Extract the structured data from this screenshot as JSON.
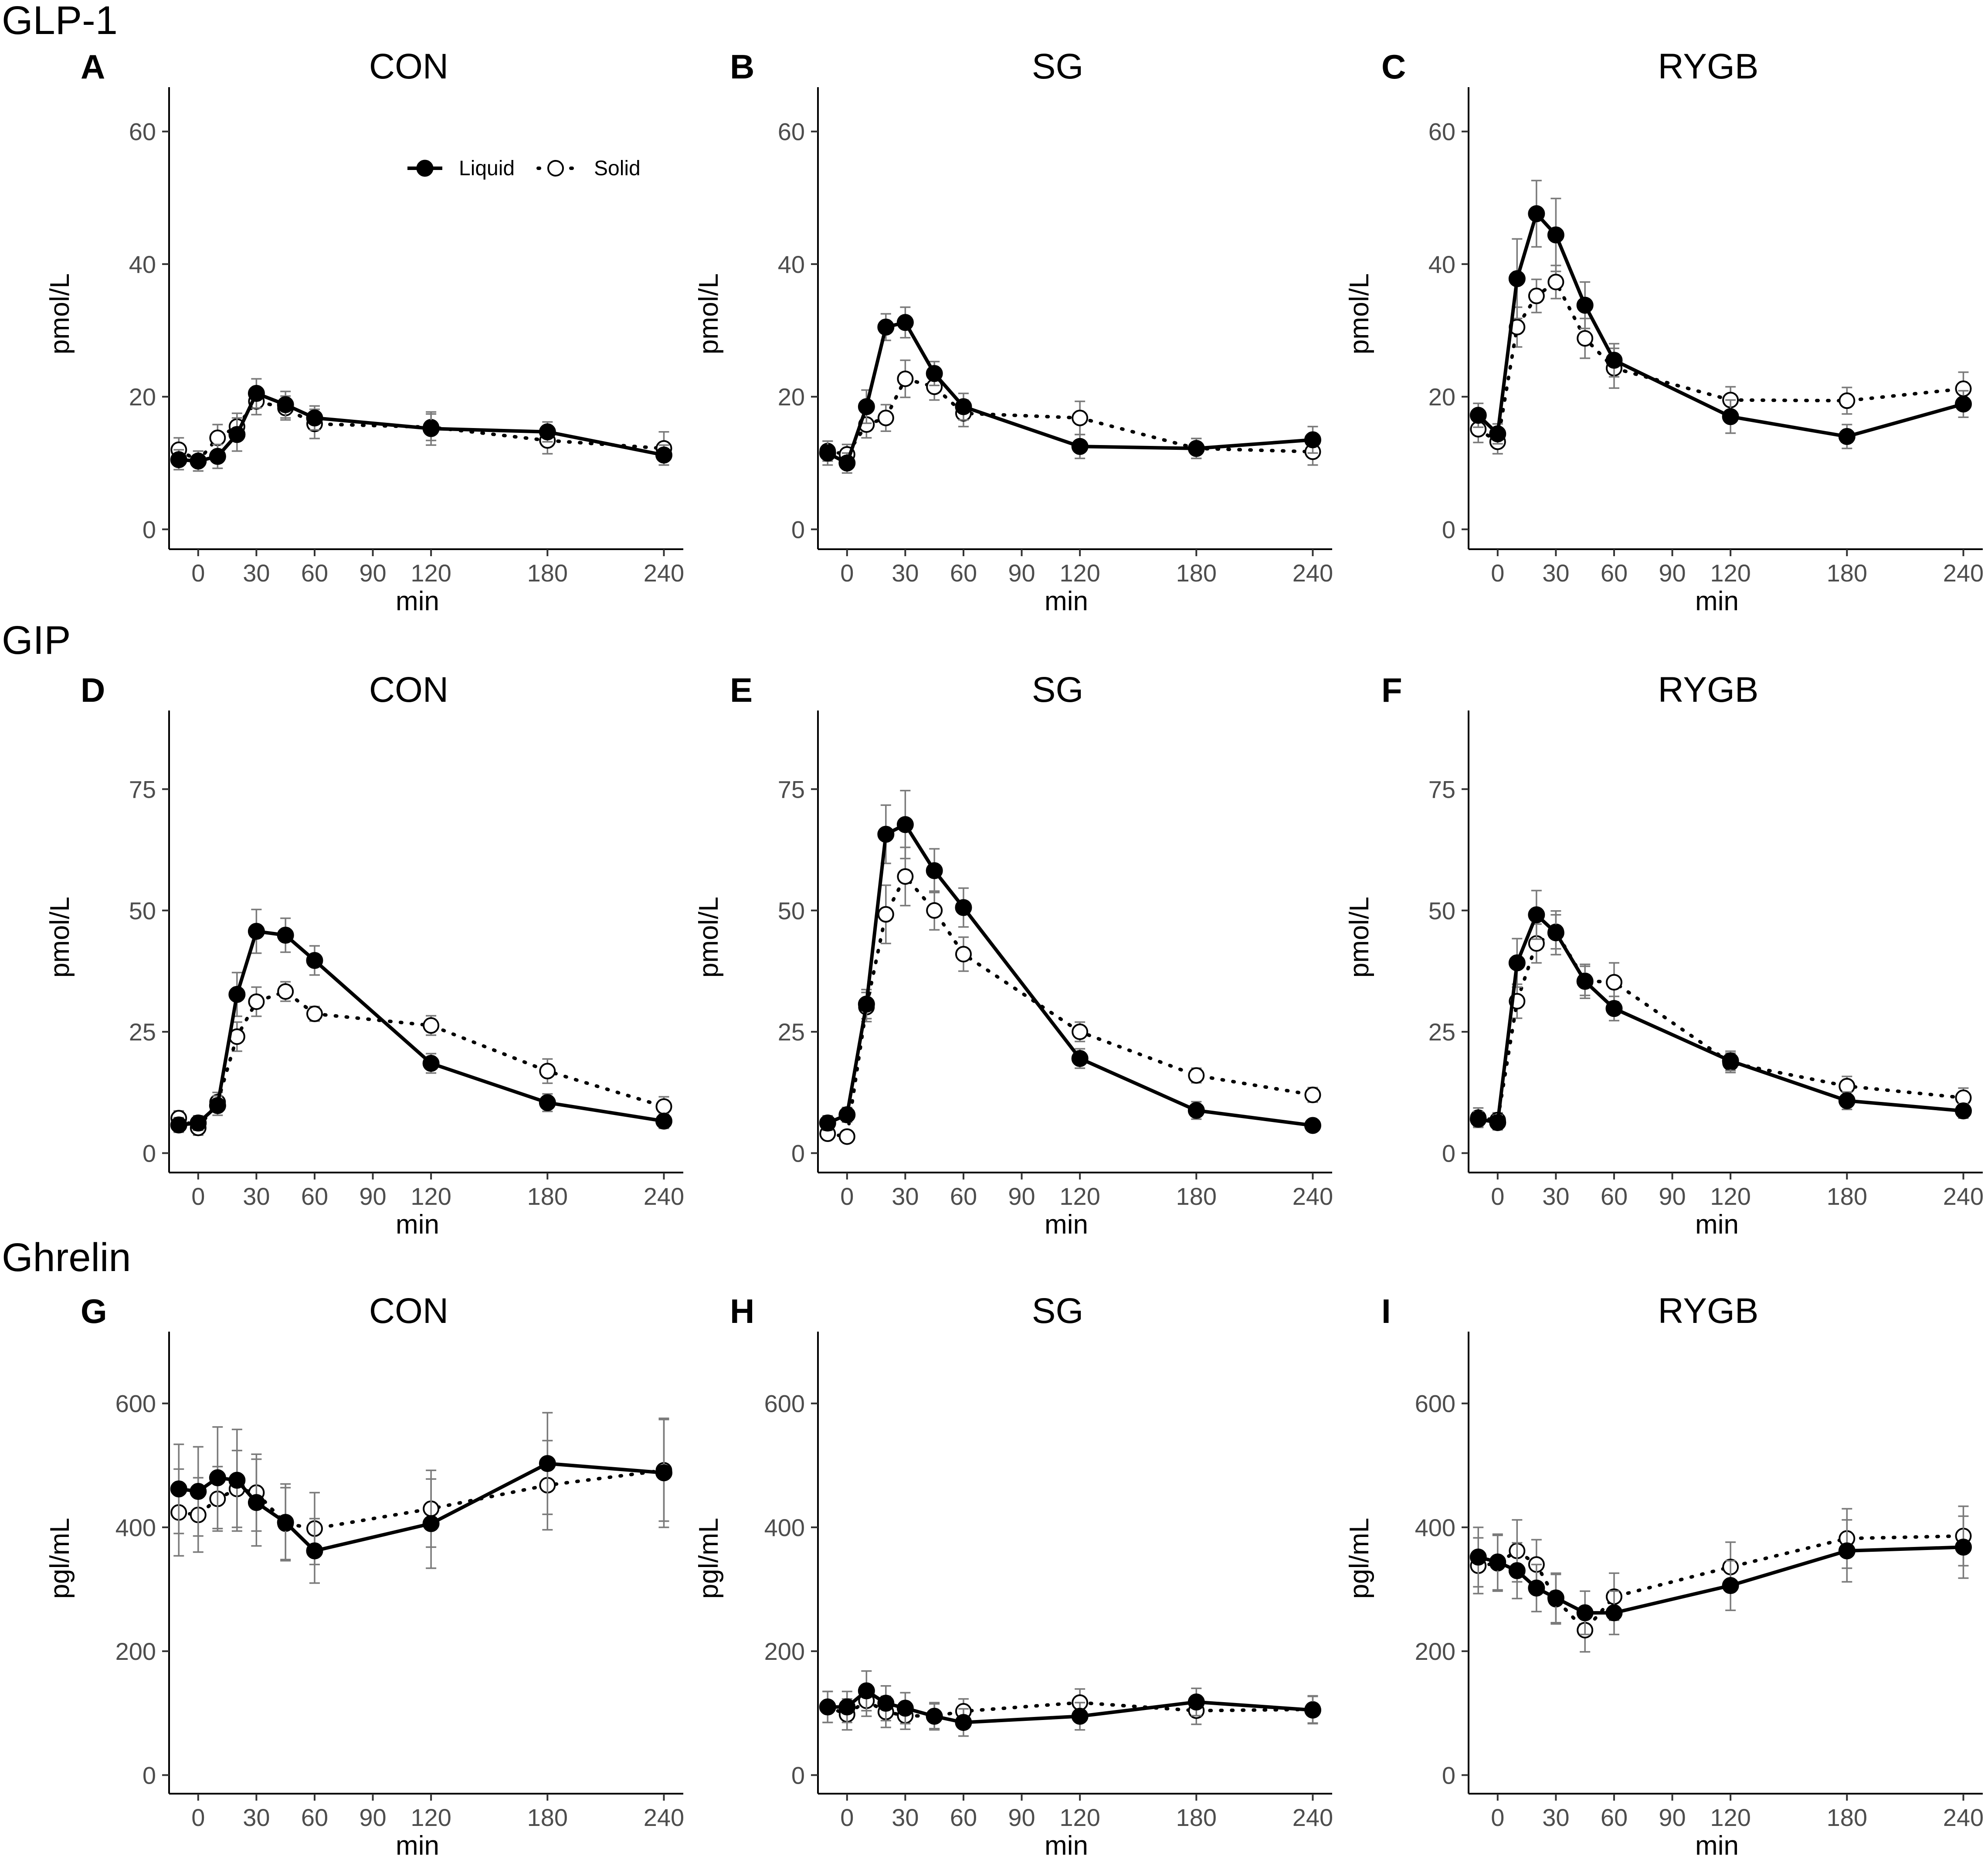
{
  "figure": {
    "row_titles": [
      "GLP-1",
      "GIP",
      "Ghrelin"
    ],
    "legend": {
      "liquid_label": "Liquid",
      "solid_label": "Solid"
    }
  },
  "chart_data": [
    {
      "type": "line",
      "letter": "A",
      "title": "CON",
      "row": "GLP-1",
      "xlabel": "min",
      "ylabel": "pmol/L",
      "xticks": [
        0,
        30,
        60,
        90,
        120,
        180,
        240
      ],
      "xlim": [
        -15,
        250
      ],
      "yticks": [
        0,
        20,
        40,
        60
      ],
      "ylim": [
        -3,
        68
      ],
      "series": [
        {
          "name": "Liquid",
          "x": [
            -10,
            0,
            10,
            20,
            30,
            45,
            60,
            120,
            180,
            240
          ],
          "y": [
            10.5,
            10.3,
            11.0,
            14.3,
            20.5,
            18.8,
            16.8,
            15.2,
            14.7,
            11.2
          ],
          "err": [
            1.5,
            1.5,
            1.8,
            2.5,
            2.2,
            2.0,
            1.8,
            2.5,
            1.5,
            1.5
          ]
        },
        {
          "name": "Solid",
          "x": [
            -10,
            0,
            10,
            20,
            30,
            45,
            60,
            120,
            180,
            240
          ],
          "y": [
            12.0,
            10.3,
            13.8,
            15.5,
            19.3,
            18.3,
            15.9,
            15.4,
            13.4,
            12.2
          ],
          "err": [
            1.8,
            1.5,
            2.0,
            2.0,
            2.0,
            1.8,
            2.2,
            2.0,
            2.0,
            2.5
          ]
        }
      ]
    },
    {
      "type": "line",
      "letter": "B",
      "title": "SG",
      "row": "GLP-1",
      "xlabel": "min",
      "ylabel": "pmol/L",
      "xticks": [
        0,
        30,
        60,
        90,
        120,
        180,
        240
      ],
      "xlim": [
        -15,
        250
      ],
      "yticks": [
        0,
        20,
        40,
        60
      ],
      "ylim": [
        -3,
        68
      ],
      "series": [
        {
          "name": "Liquid",
          "x": [
            -10,
            0,
            10,
            20,
            30,
            45,
            60,
            120,
            180,
            240
          ],
          "y": [
            11.5,
            10.0,
            18.5,
            30.5,
            31.2,
            23.5,
            18.5,
            12.5,
            12.2,
            13.5
          ],
          "err": [
            1.8,
            1.5,
            2.5,
            2.0,
            2.3,
            1.8,
            2.0,
            1.8,
            1.5,
            2.0
          ]
        },
        {
          "name": "Solid",
          "x": [
            -10,
            0,
            10,
            20,
            30,
            45,
            60,
            120,
            180,
            240
          ],
          "y": [
            11.8,
            11.3,
            15.8,
            16.8,
            22.7,
            21.5,
            17.5,
            16.8,
            12.2,
            11.7
          ],
          "err": [
            1.5,
            1.5,
            2.0,
            2.0,
            2.8,
            2.0,
            2.0,
            2.5,
            1.5,
            2.0
          ]
        }
      ]
    },
    {
      "type": "line",
      "letter": "C",
      "title": "RYGB",
      "row": "GLP-1",
      "xlabel": "min",
      "ylabel": "pmol/L",
      "xticks": [
        0,
        30,
        60,
        90,
        120,
        180,
        240
      ],
      "xlim": [
        -15,
        250
      ],
      "yticks": [
        0,
        20,
        40,
        60
      ],
      "ylim": [
        -3,
        68
      ],
      "series": [
        {
          "name": "Liquid",
          "x": [
            -10,
            0,
            10,
            20,
            30,
            45,
            60,
            120,
            180,
            240
          ],
          "y": [
            17.2,
            14.4,
            37.8,
            47.6,
            44.4,
            33.8,
            25.5,
            17.0,
            14.0,
            18.9
          ],
          "err": [
            1.8,
            1.5,
            6.0,
            5.0,
            5.5,
            3.5,
            2.5,
            2.5,
            1.8,
            2.0
          ]
        },
        {
          "name": "Solid",
          "x": [
            -10,
            0,
            10,
            20,
            30,
            45,
            60,
            120,
            180,
            240
          ],
          "y": [
            15.1,
            13.2,
            30.5,
            35.2,
            37.3,
            28.8,
            24.3,
            19.5,
            19.4,
            21.2
          ],
          "err": [
            2.0,
            1.8,
            3.0,
            2.5,
            2.5,
            3.0,
            3.0,
            2.0,
            2.0,
            2.5
          ]
        }
      ]
    },
    {
      "type": "line",
      "letter": "D",
      "title": "CON",
      "row": "GIP",
      "xlabel": "min",
      "ylabel": "pmol/L",
      "xticks": [
        0,
        30,
        60,
        90,
        120,
        180,
        240
      ],
      "xlim": [
        -15,
        250
      ],
      "yticks": [
        0,
        25,
        50,
        75
      ],
      "ylim": [
        -4,
        93
      ],
      "series": [
        {
          "name": "Liquid",
          "x": [
            -10,
            0,
            10,
            20,
            30,
            45,
            60,
            120,
            180,
            240
          ],
          "y": [
            5.8,
            6.2,
            9.8,
            32.7,
            45.7,
            44.9,
            39.7,
            18.5,
            10.4,
            6.6
          ],
          "err": [
            1.5,
            1.5,
            2.0,
            4.5,
            4.5,
            3.5,
            3.0,
            2.0,
            1.8,
            1.5
          ]
        },
        {
          "name": "Solid",
          "x": [
            -10,
            0,
            10,
            20,
            30,
            45,
            60,
            120,
            180,
            240
          ],
          "y": [
            7.2,
            5.2,
            10.5,
            24.0,
            31.2,
            33.3,
            28.7,
            26.3,
            16.9,
            9.6
          ],
          "err": [
            1.5,
            1.5,
            2.0,
            3.0,
            3.0,
            2.0,
            1.5,
            2.0,
            2.5,
            2.0
          ]
        }
      ]
    },
    {
      "type": "line",
      "letter": "E",
      "title": "SG",
      "row": "GIP",
      "xlabel": "min",
      "ylabel": "pmol/L",
      "xticks": [
        0,
        30,
        60,
        90,
        120,
        180,
        240
      ],
      "xlim": [
        -15,
        250
      ],
      "yticks": [
        0,
        25,
        50,
        75
      ],
      "ylim": [
        -4,
        93
      ],
      "series": [
        {
          "name": "Liquid",
          "x": [
            -10,
            0,
            10,
            20,
            30,
            45,
            60,
            120,
            180,
            240
          ],
          "y": [
            6.2,
            7.9,
            30.7,
            65.7,
            67.7,
            58.2,
            50.6,
            19.5,
            8.8,
            5.7
          ],
          "err": [
            1.5,
            1.5,
            3.0,
            6.0,
            7.0,
            4.5,
            4.0,
            2.0,
            1.8,
            1.2
          ]
        },
        {
          "name": "Solid",
          "x": [
            -10,
            0,
            10,
            20,
            30,
            45,
            60,
            120,
            180,
            240
          ],
          "y": [
            4.0,
            3.4,
            30.1,
            49.2,
            57.0,
            50.0,
            41.0,
            25.0,
            16.0,
            12.0
          ],
          "err": [
            1.2,
            1.2,
            3.0,
            6.0,
            6.0,
            4.0,
            3.5,
            2.0,
            1.5,
            1.5
          ]
        }
      ]
    },
    {
      "type": "line",
      "letter": "F",
      "title": "RYGB",
      "row": "GIP",
      "xlabel": "min",
      "ylabel": "pmol/L",
      "xticks": [
        0,
        30,
        60,
        90,
        120,
        180,
        240
      ],
      "xlim": [
        -15,
        250
      ],
      "yticks": [
        0,
        25,
        50,
        75
      ],
      "ylim": [
        -4,
        93
      ],
      "series": [
        {
          "name": "Liquid",
          "x": [
            -10,
            0,
            10,
            20,
            30,
            45,
            60,
            120,
            180,
            240
          ],
          "y": [
            7.0,
            6.3,
            39.2,
            49.1,
            45.4,
            35.4,
            29.8,
            19.0,
            10.8,
            8.7
          ],
          "err": [
            1.5,
            1.5,
            5.0,
            5.0,
            4.5,
            3.5,
            2.5,
            2.0,
            1.8,
            1.5
          ]
        },
        {
          "name": "Solid",
          "x": [
            -10,
            0,
            10,
            20,
            30,
            45,
            60,
            120,
            180,
            240
          ],
          "y": [
            7.3,
            6.8,
            31.3,
            43.2,
            45.6,
            35.5,
            35.2,
            18.6,
            13.8,
            11.4
          ],
          "err": [
            2.0,
            1.5,
            3.5,
            4.0,
            3.5,
            3.0,
            4.0,
            2.0,
            2.0,
            2.0
          ]
        }
      ]
    },
    {
      "type": "line",
      "letter": "G",
      "title": "CON",
      "row": "Ghrelin",
      "xlabel": "min",
      "ylabel": "pgl/mL",
      "xticks": [
        0,
        30,
        60,
        90,
        120,
        180,
        240
      ],
      "xlim": [
        -15,
        250
      ],
      "yticks": [
        0,
        200,
        400,
        600
      ],
      "ylim": [
        -30,
        730
      ],
      "series": [
        {
          "name": "Liquid",
          "x": [
            -10,
            0,
            10,
            20,
            30,
            45,
            60,
            120,
            180,
            240
          ],
          "y": [
            462,
            458,
            480,
            476,
            440,
            408,
            362,
            406,
            503,
            488
          ],
          "err": [
            72,
            72,
            82,
            82,
            70,
            62,
            52,
            72,
            82,
            88
          ]
        },
        {
          "name": "Solid",
          "x": [
            -10,
            0,
            10,
            20,
            30,
            45,
            60,
            120,
            180,
            240
          ],
          "y": [
            424,
            420,
            446,
            462,
            456,
            406,
            398,
            430,
            468,
            492
          ],
          "err": [
            70,
            60,
            52,
            62,
            62,
            58,
            58,
            62,
            72,
            82
          ]
        }
      ]
    },
    {
      "type": "line",
      "letter": "H",
      "title": "SG",
      "row": "Ghrelin",
      "xlabel": "min",
      "ylabel": "pgl/mL",
      "xticks": [
        0,
        30,
        60,
        90,
        120,
        180,
        240
      ],
      "xlim": [
        -15,
        250
      ],
      "yticks": [
        0,
        200,
        400,
        600
      ],
      "ylim": [
        -30,
        730
      ],
      "series": [
        {
          "name": "Liquid",
          "x": [
            -10,
            0,
            10,
            20,
            30,
            45,
            60,
            120,
            180,
            240
          ],
          "y": [
            110,
            110,
            136,
            116,
            108,
            95,
            85,
            95,
            118,
            105
          ],
          "err": [
            25,
            25,
            32,
            28,
            25,
            22,
            22,
            22,
            22,
            22
          ]
        },
        {
          "name": "Solid",
          "x": [
            -10,
            0,
            10,
            20,
            30,
            45,
            60,
            120,
            180,
            240
          ],
          "y": [
            110,
            98,
            120,
            102,
            96,
            95,
            103,
            117,
            104,
            106
          ],
          "err": [
            25,
            25,
            25,
            25,
            22,
            20,
            20,
            22,
            22,
            22
          ]
        }
      ]
    },
    {
      "type": "line",
      "letter": "I",
      "title": "RYGB",
      "row": "Ghrelin",
      "xlabel": "min",
      "ylabel": "pgl/mL",
      "xticks": [
        0,
        30,
        60,
        90,
        120,
        180,
        240
      ],
      "xlim": [
        -15,
        250
      ],
      "yticks": [
        0,
        200,
        400,
        600
      ],
      "ylim": [
        -30,
        730
      ],
      "series": [
        {
          "name": "Liquid",
          "x": [
            -10,
            0,
            10,
            20,
            30,
            45,
            60,
            120,
            180,
            240
          ],
          "y": [
            352,
            344,
            330,
            302,
            286,
            262,
            262,
            306,
            362,
            368
          ],
          "err": [
            48,
            45,
            45,
            38,
            40,
            35,
            35,
            40,
            50,
            50
          ]
        },
        {
          "name": "Solid",
          "x": [
            -10,
            0,
            10,
            20,
            30,
            45,
            60,
            120,
            180,
            240
          ],
          "y": [
            338,
            342,
            362,
            340,
            284,
            234,
            288,
            336,
            382,
            386
          ],
          "err": [
            45,
            45,
            50,
            40,
            40,
            35,
            38,
            40,
            48,
            48
          ]
        }
      ]
    }
  ]
}
